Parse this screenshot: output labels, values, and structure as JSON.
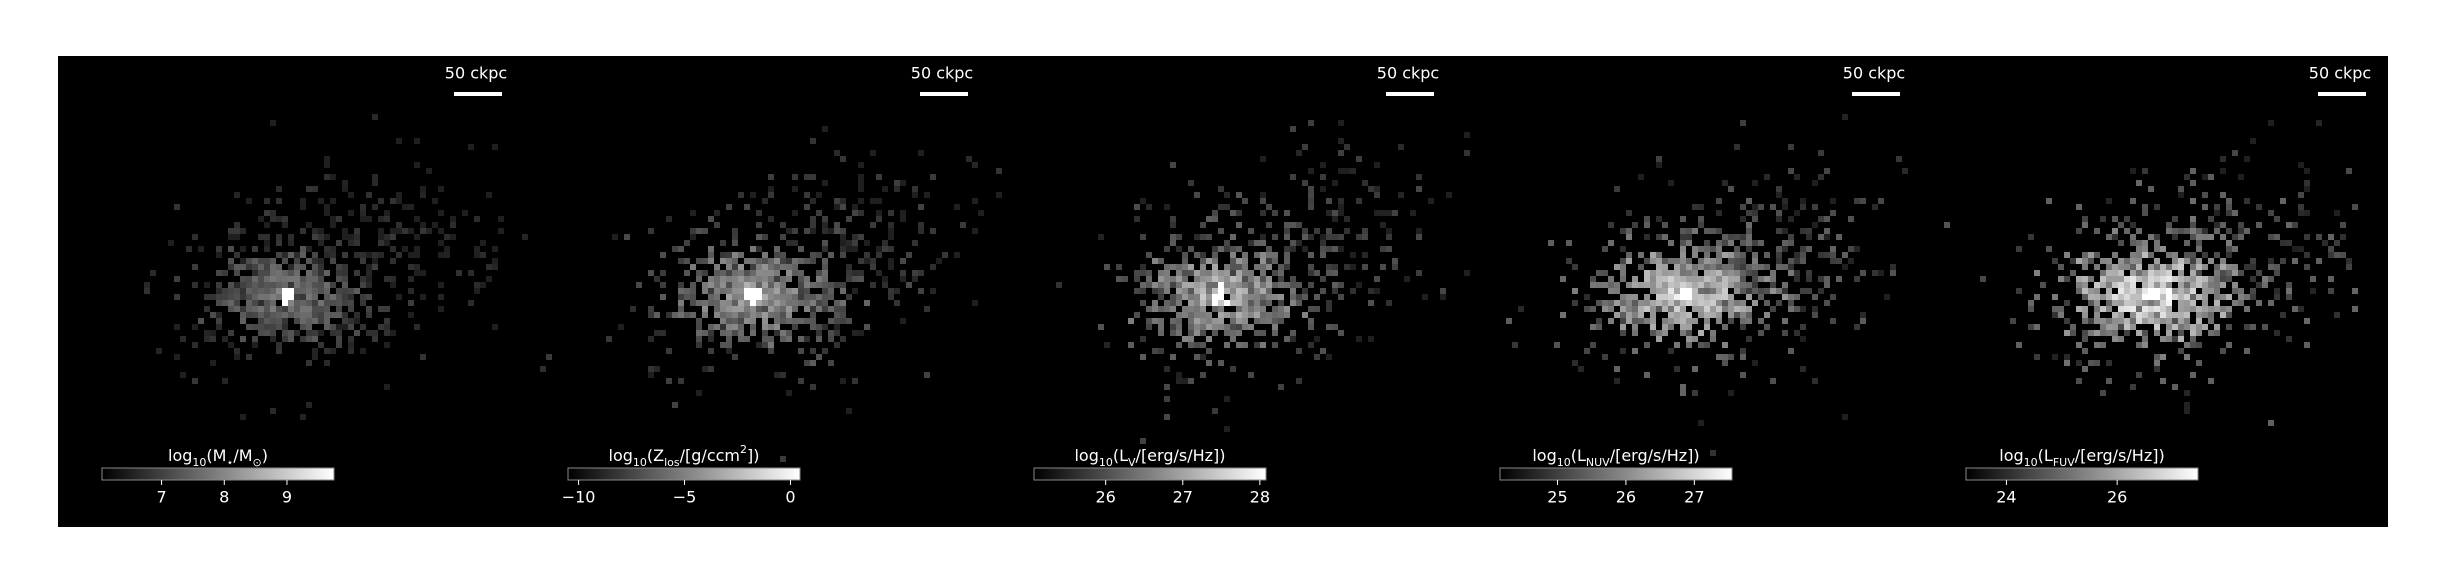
{
  "chart_data": {
    "type": "image-panels",
    "panels": [
      {
        "scale_label": "50 ckpc",
        "colorbar": {
          "label_parts": [
            {
              "text": "log"
            },
            {
              "text": "10",
              "sub": true
            },
            {
              "text": "(M"
            },
            {
              "text": "⋆",
              "sub": true
            },
            {
              "text": "/M"
            },
            {
              "text": "⊙",
              "sub": true
            },
            {
              "text": ")"
            }
          ],
          "lim": [
            6.05,
            9.75
          ],
          "ticks": [
            7,
            8,
            9
          ]
        }
      },
      {
        "scale_label": "50 ckpc",
        "colorbar": {
          "label_parts": [
            {
              "text": "log"
            },
            {
              "text": "10",
              "sub": true
            },
            {
              "text": "(Z"
            },
            {
              "text": "los",
              "sub": true
            },
            {
              "text": "/[g/ccm"
            },
            {
              "text": "2",
              "sup": true
            },
            {
              "text": "])"
            }
          ],
          "lim": [
            -10.5,
            0.45
          ],
          "ticks": [
            {
              "value": -10,
              "label": "−10"
            },
            {
              "value": -5,
              "label": "−5"
            },
            0
          ]
        }
      },
      {
        "scale_label": "50 ckpc",
        "colorbar": {
          "label_parts": [
            {
              "text": "log"
            },
            {
              "text": "10",
              "sub": true
            },
            {
              "text": "(L"
            },
            {
              "text": "V",
              "sub": true
            },
            {
              "text": "/[erg/s/Hz])"
            }
          ],
          "lim": [
            25.07,
            28.08
          ],
          "ticks": [
            26,
            27,
            28
          ]
        }
      },
      {
        "scale_label": "50 ckpc",
        "colorbar": {
          "label_parts": [
            {
              "text": "log"
            },
            {
              "text": "10",
              "sub": true
            },
            {
              "text": "(L"
            },
            {
              "text": "NUV",
              "sub": true
            },
            {
              "text": "/[erg/s/Hz])"
            }
          ],
          "lim": [
            24.16,
            27.55
          ],
          "ticks": [
            25,
            26,
            27
          ]
        }
      },
      {
        "scale_label": "50 ckpc",
        "colorbar": {
          "label_parts": [
            {
              "text": "log"
            },
            {
              "text": "10",
              "sub": true
            },
            {
              "text": "(L"
            },
            {
              "text": "FUV",
              "sub": true
            },
            {
              "text": "/[erg/s/Hz])"
            }
          ],
          "lim": [
            23.27,
            27.46
          ],
          "ticks": [
            24,
            26
          ]
        }
      }
    ]
  }
}
